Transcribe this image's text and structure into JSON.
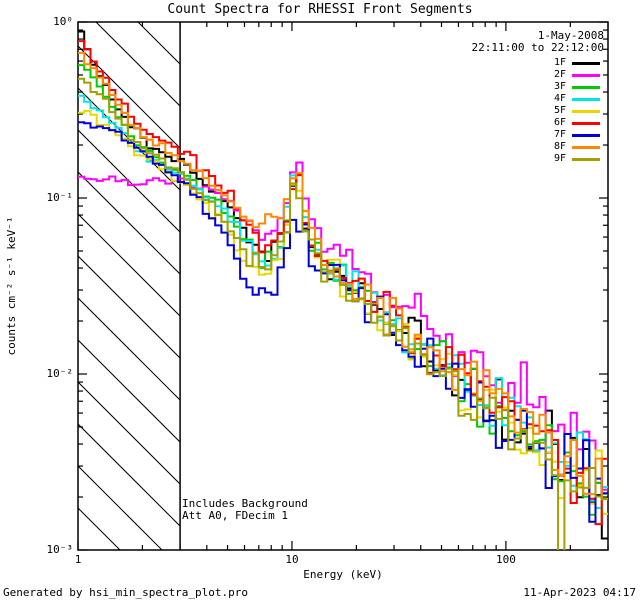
{
  "window_title": "Count Spectra for RHESSI Front Segments",
  "footer": {
    "left": "Generated by hsi_min_spectra_plot.pro",
    "right": "11-Apr-2023 04:17"
  },
  "chart_data": {
    "type": "line",
    "subtype": "step-histogram-spectra",
    "title": "Count Spectra for RHESSI Front Segments",
    "xlabel": "Energy (keV)",
    "ylabel": "counts cm⁻² s⁻¹ keV⁻¹",
    "xscale": "log",
    "yscale": "log",
    "xlim": [
      1,
      300
    ],
    "ylim": [
      0.001,
      1.0
    ],
    "x_ticks": [
      1,
      10,
      100
    ],
    "x_ticklabels": [
      "1",
      "10",
      "100"
    ],
    "y_ticks": [
      1,
      0.1,
      0.01,
      0.001
    ],
    "y_ticklabels": [
      "10⁰",
      "10⁻¹",
      "10⁻²",
      "10⁻³"
    ],
    "grid": false,
    "legend_position": "top-right",
    "excluded_band_kev": [
      1,
      3
    ],
    "annotations": {
      "date": "1-May-2008",
      "time_range": "22:11:00 to 22:12:00",
      "note1": "Includes Background",
      "note2": "Att A0, FDecim 1"
    },
    "series": [
      {
        "name": "1F",
        "color": "#000000",
        "points": [
          [
            1,
            0.97
          ],
          [
            1.2,
            0.55
          ],
          [
            1.5,
            0.35
          ],
          [
            1.8,
            0.25
          ],
          [
            2.2,
            0.2
          ],
          [
            2.7,
            0.17
          ],
          [
            3.3,
            0.15
          ],
          [
            4,
            0.12
          ],
          [
            5,
            0.095
          ],
          [
            6,
            0.065
          ],
          [
            7,
            0.05
          ],
          [
            8,
            0.045
          ],
          [
            9,
            0.055
          ],
          [
            9.8,
            0.09
          ],
          [
            10.5,
            0.155
          ],
          [
            11.2,
            0.09
          ],
          [
            12,
            0.055
          ],
          [
            14,
            0.042
          ],
          [
            17,
            0.034
          ],
          [
            20,
            0.028
          ],
          [
            25,
            0.023
          ],
          [
            30,
            0.019
          ],
          [
            40,
            0.014
          ],
          [
            55,
            0.01
          ],
          [
            75,
            0.0075
          ],
          [
            100,
            0.0058
          ],
          [
            140,
            0.0042
          ],
          [
            200,
            0.003
          ],
          [
            300,
            0.0021
          ]
        ]
      },
      {
        "name": "2F",
        "color": "#ff00ff",
        "points": [
          [
            1,
            0.135
          ],
          [
            1.2,
            0.125
          ],
          [
            1.5,
            0.13
          ],
          [
            1.8,
            0.12
          ],
          [
            2.2,
            0.13
          ],
          [
            2.7,
            0.125
          ],
          [
            3.3,
            0.12
          ],
          [
            4,
            0.115
          ],
          [
            5,
            0.1
          ],
          [
            6,
            0.08
          ],
          [
            7,
            0.065
          ],
          [
            8,
            0.06
          ],
          [
            9,
            0.07
          ],
          [
            9.8,
            0.11
          ],
          [
            10.5,
            0.18
          ],
          [
            11.2,
            0.11
          ],
          [
            12,
            0.075
          ],
          [
            14,
            0.058
          ],
          [
            17,
            0.047
          ],
          [
            20,
            0.04
          ],
          [
            25,
            0.033
          ],
          [
            30,
            0.028
          ],
          [
            40,
            0.021
          ],
          [
            55,
            0.015
          ],
          [
            75,
            0.011
          ],
          [
            100,
            0.0085
          ],
          [
            140,
            0.0062
          ],
          [
            200,
            0.0045
          ],
          [
            300,
            0.0032
          ]
        ]
      },
      {
        "name": "3F",
        "color": "#00cc00",
        "points": [
          [
            1,
            0.6
          ],
          [
            1.2,
            0.45
          ],
          [
            1.5,
            0.32
          ],
          [
            1.8,
            0.22
          ],
          [
            2.2,
            0.18
          ],
          [
            2.7,
            0.15
          ],
          [
            3.3,
            0.13
          ],
          [
            4,
            0.105
          ],
          [
            5,
            0.085
          ],
          [
            6,
            0.06
          ],
          [
            7,
            0.048
          ],
          [
            8,
            0.044
          ],
          [
            9,
            0.055
          ],
          [
            9.8,
            0.1
          ],
          [
            10.5,
            0.165
          ],
          [
            11.2,
            0.095
          ],
          [
            12,
            0.06
          ],
          [
            14,
            0.044
          ],
          [
            17,
            0.035
          ],
          [
            20,
            0.029
          ],
          [
            25,
            0.024
          ],
          [
            30,
            0.02
          ],
          [
            40,
            0.015
          ],
          [
            55,
            0.011
          ],
          [
            75,
            0.008
          ],
          [
            100,
            0.006
          ],
          [
            140,
            0.0044
          ],
          [
            200,
            0.0032
          ],
          [
            300,
            0.0022
          ]
        ]
      },
      {
        "name": "4F",
        "color": "#00e5e5",
        "points": [
          [
            1,
            0.4
          ],
          [
            1.2,
            0.33
          ],
          [
            1.5,
            0.26
          ],
          [
            1.8,
            0.2
          ],
          [
            2.2,
            0.17
          ],
          [
            2.7,
            0.145
          ],
          [
            3.3,
            0.125
          ],
          [
            4,
            0.1
          ],
          [
            5,
            0.08
          ],
          [
            6,
            0.058
          ],
          [
            7,
            0.046
          ],
          [
            8,
            0.043
          ],
          [
            9,
            0.056
          ],
          [
            9.8,
            0.11
          ],
          [
            10.5,
            0.2
          ],
          [
            11.2,
            0.1
          ],
          [
            12,
            0.06
          ],
          [
            14,
            0.045
          ],
          [
            17,
            0.036
          ],
          [
            20,
            0.03
          ],
          [
            25,
            0.024
          ],
          [
            30,
            0.02
          ],
          [
            40,
            0.015
          ],
          [
            55,
            0.011
          ],
          [
            75,
            0.008
          ],
          [
            100,
            0.006
          ],
          [
            140,
            0.0044
          ],
          [
            200,
            0.0032
          ],
          [
            300,
            0.0022
          ]
        ]
      },
      {
        "name": "5F",
        "color": "#e8d800",
        "points": [
          [
            1,
            0.33
          ],
          [
            1.2,
            0.28
          ],
          [
            1.5,
            0.24
          ],
          [
            1.8,
            0.19
          ],
          [
            2.2,
            0.16
          ],
          [
            2.7,
            0.135
          ],
          [
            3.3,
            0.115
          ],
          [
            4,
            0.09
          ],
          [
            5,
            0.065
          ],
          [
            6,
            0.042
          ],
          [
            7,
            0.036
          ],
          [
            8,
            0.04
          ],
          [
            9,
            0.05
          ],
          [
            9.8,
            0.095
          ],
          [
            10.5,
            0.15
          ],
          [
            11.2,
            0.09
          ],
          [
            12,
            0.055
          ],
          [
            14,
            0.042
          ],
          [
            17,
            0.033
          ],
          [
            20,
            0.027
          ],
          [
            25,
            0.022
          ],
          [
            30,
            0.018
          ],
          [
            40,
            0.014
          ],
          [
            55,
            0.01
          ],
          [
            75,
            0.0072
          ],
          [
            100,
            0.0055
          ],
          [
            140,
            0.004
          ],
          [
            200,
            0.0029
          ],
          [
            300,
            0.002
          ]
        ]
      },
      {
        "name": "6F",
        "color": "#ff0000",
        "points": [
          [
            1,
            0.88
          ],
          [
            1.2,
            0.6
          ],
          [
            1.5,
            0.4
          ],
          [
            1.8,
            0.28
          ],
          [
            2.2,
            0.23
          ],
          [
            2.7,
            0.2
          ],
          [
            3.3,
            0.175
          ],
          [
            4,
            0.14
          ],
          [
            5,
            0.11
          ],
          [
            6,
            0.075
          ],
          [
            7,
            0.055
          ],
          [
            8,
            0.05
          ],
          [
            9,
            0.06
          ],
          [
            9.8,
            0.1
          ],
          [
            10.5,
            0.16
          ],
          [
            11.2,
            0.095
          ],
          [
            12,
            0.06
          ],
          [
            14,
            0.046
          ],
          [
            17,
            0.037
          ],
          [
            20,
            0.031
          ],
          [
            25,
            0.025
          ],
          [
            30,
            0.021
          ],
          [
            40,
            0.016
          ],
          [
            55,
            0.0115
          ],
          [
            75,
            0.0085
          ],
          [
            100,
            0.0064
          ],
          [
            140,
            0.0046
          ],
          [
            200,
            0.0033
          ],
          [
            300,
            0.0023
          ]
        ]
      },
      {
        "name": "7F",
        "color": "#0000dd",
        "points": [
          [
            1,
            0.28
          ],
          [
            1.2,
            0.26
          ],
          [
            1.5,
            0.24
          ],
          [
            1.8,
            0.2
          ],
          [
            2.2,
            0.17
          ],
          [
            2.7,
            0.14
          ],
          [
            3.3,
            0.115
          ],
          [
            4,
            0.085
          ],
          [
            5,
            0.06
          ],
          [
            6,
            0.035
          ],
          [
            7,
            0.028
          ],
          [
            8,
            0.03
          ],
          [
            9,
            0.04
          ],
          [
            9.8,
            0.06
          ],
          [
            10.5,
            0.085
          ],
          [
            11.2,
            0.065
          ],
          [
            12,
            0.05
          ],
          [
            14,
            0.04
          ],
          [
            17,
            0.032
          ],
          [
            20,
            0.027
          ],
          [
            25,
            0.022
          ],
          [
            30,
            0.018
          ],
          [
            40,
            0.014
          ],
          [
            55,
            0.01
          ],
          [
            75,
            0.0073
          ],
          [
            100,
            0.0056
          ],
          [
            140,
            0.0041
          ],
          [
            200,
            0.003
          ],
          [
            300,
            0.0021
          ]
        ]
      },
      {
        "name": "8F",
        "color": "#ff8800",
        "points": [
          [
            1,
            0.7
          ],
          [
            1.2,
            0.52
          ],
          [
            1.5,
            0.36
          ],
          [
            1.8,
            0.26
          ],
          [
            2.2,
            0.21
          ],
          [
            2.7,
            0.18
          ],
          [
            3.3,
            0.155
          ],
          [
            4,
            0.125
          ],
          [
            5,
            0.1
          ],
          [
            6,
            0.08
          ],
          [
            7,
            0.075
          ],
          [
            8,
            0.08
          ],
          [
            9,
            0.075
          ],
          [
            9.8,
            0.11
          ],
          [
            10.5,
            0.17
          ],
          [
            11.2,
            0.1
          ],
          [
            12,
            0.065
          ],
          [
            14,
            0.048
          ],
          [
            17,
            0.038
          ],
          [
            20,
            0.031
          ],
          [
            25,
            0.025
          ],
          [
            30,
            0.021
          ],
          [
            40,
            0.016
          ],
          [
            55,
            0.0115
          ],
          [
            75,
            0.0085
          ],
          [
            100,
            0.0064
          ],
          [
            140,
            0.0046
          ],
          [
            200,
            0.0033
          ],
          [
            300,
            0.0023
          ]
        ]
      },
      {
        "name": "9F",
        "color": "#a0a000",
        "points": [
          [
            1,
            0.5
          ],
          [
            1.2,
            0.4
          ],
          [
            1.5,
            0.3
          ],
          [
            1.8,
            0.22
          ],
          [
            2.2,
            0.18
          ],
          [
            2.7,
            0.15
          ],
          [
            3.3,
            0.125
          ],
          [
            4,
            0.095
          ],
          [
            5,
            0.07
          ],
          [
            6,
            0.05
          ],
          [
            7,
            0.042
          ],
          [
            8,
            0.042
          ],
          [
            9,
            0.052
          ],
          [
            9.8,
            0.09
          ],
          [
            10.5,
            0.145
          ],
          [
            11.2,
            0.085
          ],
          [
            12,
            0.055
          ],
          [
            14,
            0.042
          ],
          [
            17,
            0.033
          ],
          [
            20,
            0.027
          ],
          [
            25,
            0.022
          ],
          [
            30,
            0.018
          ],
          [
            40,
            0.0135
          ],
          [
            55,
            0.0095
          ],
          [
            75,
            0.007
          ],
          [
            100,
            0.0053
          ],
          [
            140,
            0.0039
          ],
          [
            200,
            0.0028
          ],
          [
            300,
            0.0019
          ]
        ]
      }
    ]
  }
}
